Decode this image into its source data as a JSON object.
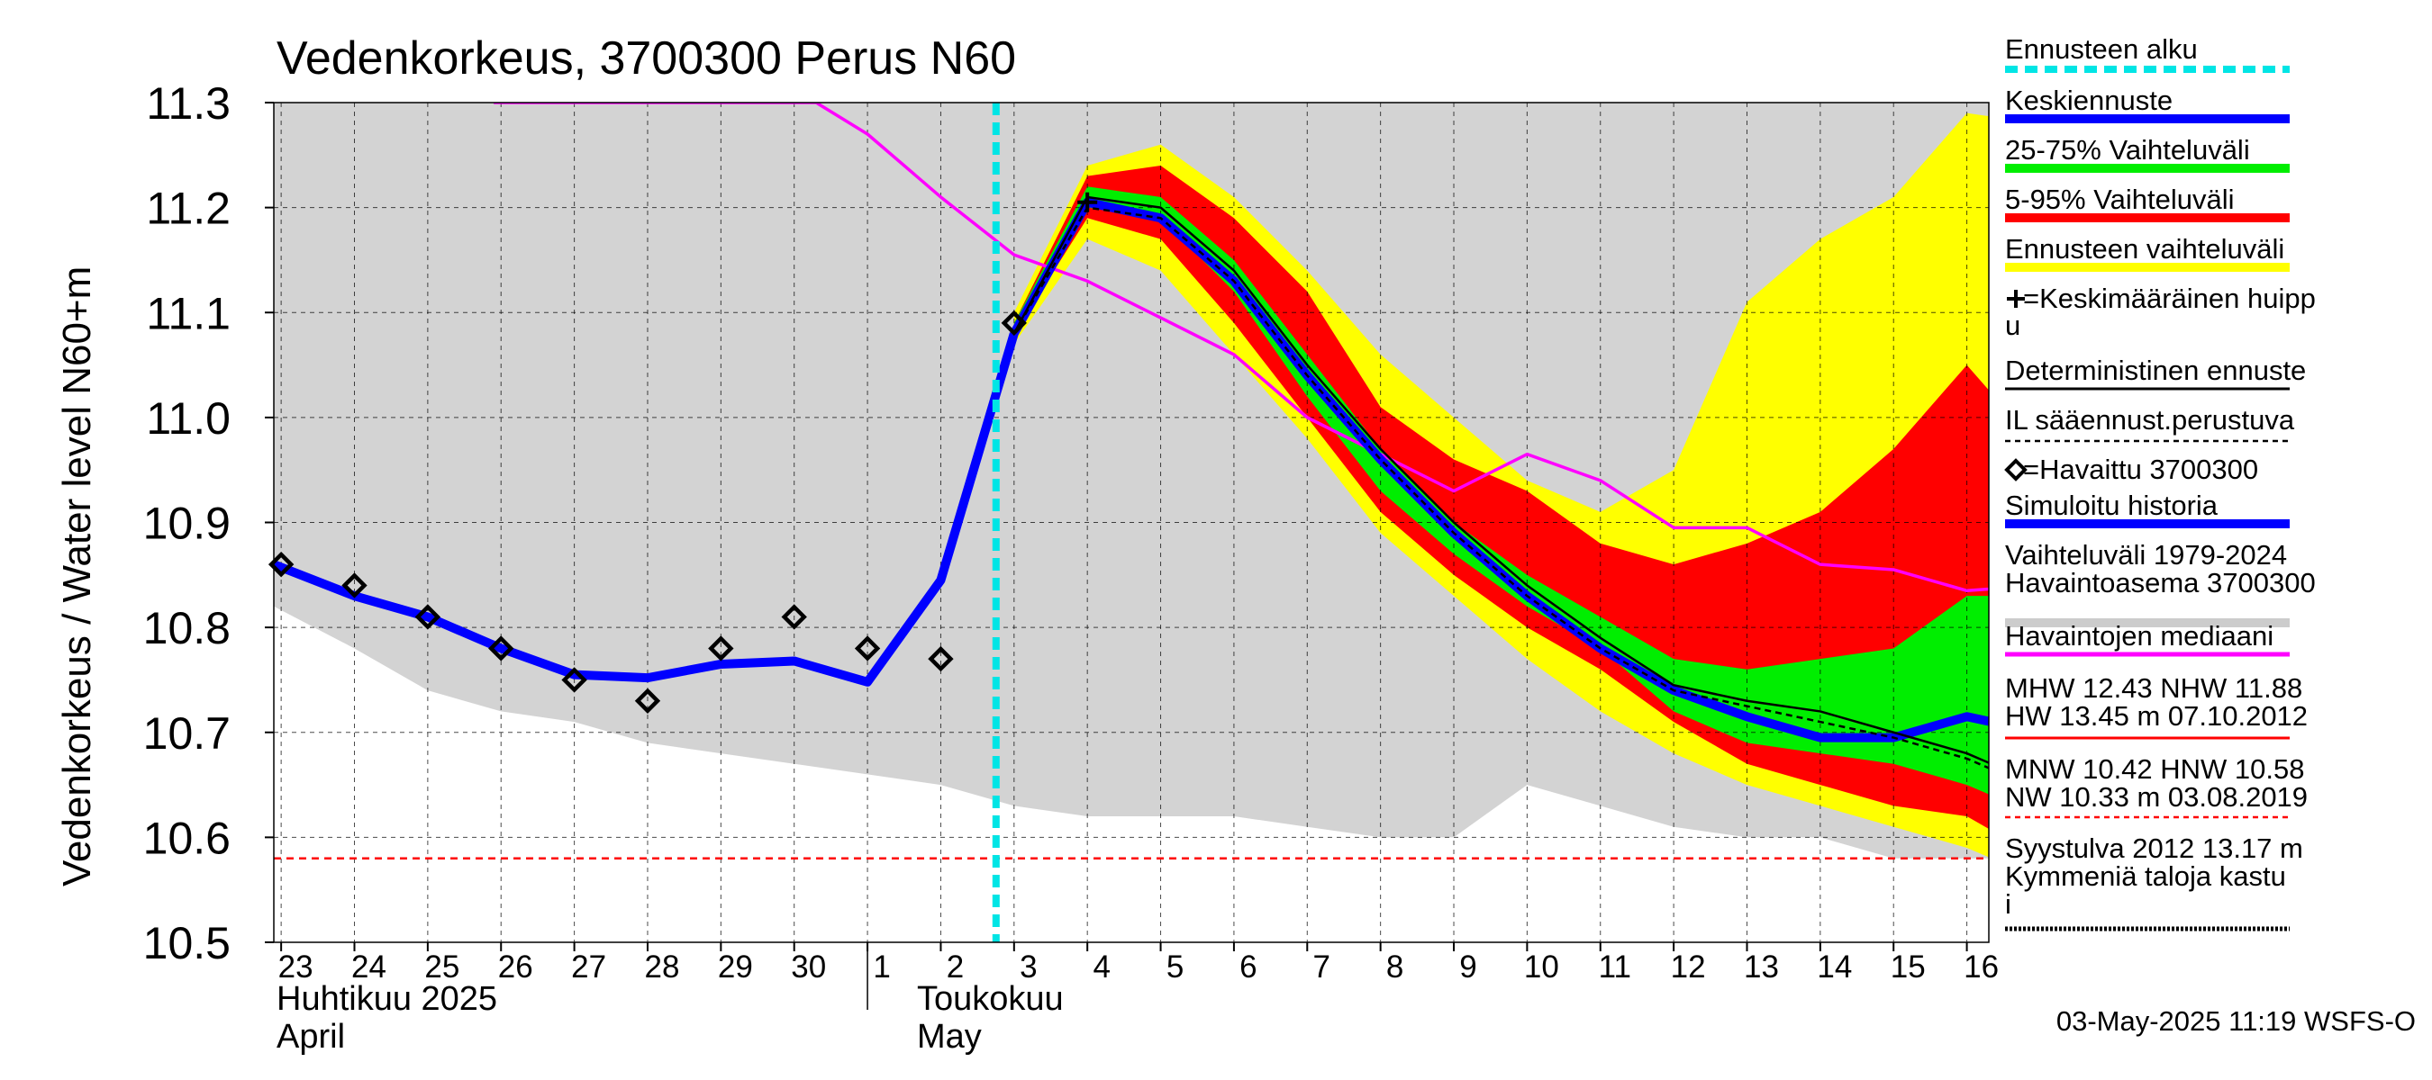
{
  "chart_data": {
    "type": "area",
    "title": "Vedenkorkeus, 3700300 Perus N60",
    "ylabel": "Vedenkorkeus / Water level   N60+m",
    "ylim": [
      10.5,
      11.3
    ],
    "yticks": [
      "10.5",
      "10.6",
      "10.7",
      "10.8",
      "10.9",
      "11.0",
      "11.1",
      "11.2",
      "11.3"
    ],
    "ytick_values": [
      10.5,
      10.6,
      10.7,
      10.8,
      10.9,
      11.0,
      11.1,
      11.2,
      11.3
    ],
    "xlim": [
      -0.1,
      23.3
    ],
    "xticks": [
      {
        "label": "23",
        "x": 0
      },
      {
        "label": "24",
        "x": 1
      },
      {
        "label": "25",
        "x": 2
      },
      {
        "label": "26",
        "x": 3
      },
      {
        "label": "27",
        "x": 4
      },
      {
        "label": "28",
        "x": 5
      },
      {
        "label": "29",
        "x": 6
      },
      {
        "label": "30",
        "x": 7
      },
      {
        "label": "1",
        "x": 8
      },
      {
        "label": "2",
        "x": 9
      },
      {
        "label": "3",
        "x": 10
      },
      {
        "label": "4",
        "x": 11
      },
      {
        "label": "5",
        "x": 12
      },
      {
        "label": "6",
        "x": 13
      },
      {
        "label": "7",
        "x": 14
      },
      {
        "label": "8",
        "x": 15
      },
      {
        "label": "9",
        "x": 16
      },
      {
        "label": "10",
        "x": 17
      },
      {
        "label": "11",
        "x": 18
      },
      {
        "label": "12",
        "x": 19
      },
      {
        "label": "13",
        "x": 20
      },
      {
        "label": "14",
        "x": 21
      },
      {
        "label": "15",
        "x": 22
      },
      {
        "label": "16",
        "x": 23
      }
    ],
    "month_labels": [
      {
        "fi": "Huhtikuu  2025",
        "en": "April",
        "x": 0
      },
      {
        "fi": "Toukokuu",
        "en": "May",
        "x": 9
      }
    ],
    "month_separator_x": 8,
    "forecast_start_x": 10,
    "grid": true,
    "timestamp": "03-May-2025 11:19 WSFS-O",
    "history_band": {
      "x": [
        -0.1,
        1,
        2,
        3,
        4,
        5,
        6,
        7,
        8,
        9,
        10,
        11,
        12,
        13,
        14,
        15,
        16,
        17,
        18,
        19,
        20,
        21,
        22,
        23,
        23.3
      ],
      "lower": [
        10.82,
        10.78,
        10.74,
        10.72,
        10.71,
        10.69,
        10.68,
        10.67,
        10.66,
        10.65,
        10.63,
        10.62,
        10.62,
        10.62,
        10.61,
        10.6,
        10.6,
        10.65,
        10.63,
        10.61,
        10.6,
        10.6,
        10.58,
        10.58,
        10.58
      ],
      "upper": 11.3
    },
    "forecast_bands": [
      {
        "name": "Ennusteen vaihteluväli",
        "color": "#ffff00",
        "x": [
          10,
          11,
          12,
          13,
          14,
          15,
          16,
          17,
          18,
          19,
          20,
          21,
          22,
          23,
          24
        ],
        "upper": [
          11.1,
          11.24,
          11.26,
          11.21,
          11.14,
          11.06,
          11.0,
          10.94,
          10.91,
          10.95,
          11.11,
          11.17,
          11.21,
          11.29,
          11.28
        ],
        "lower": [
          11.07,
          11.17,
          11.14,
          11.06,
          10.98,
          10.89,
          10.83,
          10.77,
          10.72,
          10.68,
          10.65,
          10.63,
          10.61,
          10.59,
          10.56
        ]
      },
      {
        "name": "5-95% Vaihteluväli",
        "color": "#ff0000",
        "x": [
          10,
          11,
          12,
          13,
          14,
          15,
          16,
          17,
          18,
          19,
          20,
          21,
          22,
          23,
          24
        ],
        "upper": [
          11.09,
          11.23,
          11.24,
          11.19,
          11.12,
          11.01,
          10.96,
          10.93,
          10.88,
          10.86,
          10.88,
          10.91,
          10.97,
          11.05,
          10.97
        ],
        "lower": [
          11.08,
          11.19,
          11.17,
          11.09,
          11.0,
          10.91,
          10.85,
          10.8,
          10.76,
          10.71,
          10.67,
          10.65,
          10.63,
          10.62,
          10.58
        ]
      },
      {
        "name": "25-75% Vaihteluväli",
        "color": "#00ee00",
        "x": [
          10,
          11,
          12,
          13,
          14,
          15,
          16,
          17,
          18,
          19,
          20,
          21,
          22,
          23,
          24
        ],
        "upper": [
          11.09,
          11.22,
          11.21,
          11.15,
          11.06,
          10.97,
          10.9,
          10.85,
          10.81,
          10.77,
          10.76,
          10.77,
          10.78,
          10.83,
          10.83
        ],
        "lower": [
          11.08,
          11.2,
          11.19,
          11.12,
          11.02,
          10.93,
          10.87,
          10.82,
          10.78,
          10.72,
          10.69,
          10.68,
          10.67,
          10.65,
          10.62
        ]
      }
    ],
    "series": [
      {
        "name": "Simuloitu historia",
        "color": "#0000ff",
        "x": [
          -0.1,
          1,
          2,
          3,
          4,
          5,
          6,
          7,
          8,
          9,
          10
        ],
        "values": [
          10.86,
          10.83,
          10.81,
          10.78,
          10.755,
          10.752,
          10.765,
          10.768,
          10.748,
          10.845,
          11.08
        ]
      },
      {
        "name": "Keskiennuste",
        "color": "#0000ff",
        "x": [
          10,
          11,
          12,
          13,
          14,
          15,
          16,
          17,
          18,
          19,
          20,
          21,
          22,
          23,
          24
        ],
        "values": [
          11.08,
          11.205,
          11.19,
          11.13,
          11.04,
          10.96,
          10.89,
          10.83,
          10.78,
          10.74,
          10.715,
          10.695,
          10.695,
          10.715,
          10.7
        ]
      },
      {
        "name": "Deterministinen ennuste",
        "color": "#000000",
        "x": [
          10,
          11,
          12,
          13,
          14,
          15,
          16,
          17,
          18,
          19,
          20,
          21,
          22,
          23,
          24
        ],
        "values": [
          11.08,
          11.21,
          11.2,
          11.14,
          11.05,
          10.97,
          10.9,
          10.84,
          10.79,
          10.745,
          10.73,
          10.72,
          10.7,
          10.68,
          10.65
        ]
      },
      {
        "name": "IL sääennust.perustuva",
        "color": "#000000",
        "x": [
          10,
          11,
          12,
          13,
          14,
          15,
          16,
          17,
          18,
          19,
          20,
          21,
          22,
          23,
          24
        ],
        "values": [
          11.08,
          11.2,
          11.19,
          11.13,
          11.04,
          10.96,
          10.89,
          10.83,
          10.78,
          10.74,
          10.725,
          10.71,
          10.695,
          10.675,
          10.645
        ]
      },
      {
        "name": "Havaintojen mediaani",
        "color": "#ff00ff",
        "x": [
          2.9,
          3.1,
          7.3,
          8,
          9,
          10,
          11,
          12,
          13,
          14,
          15,
          16,
          17,
          18,
          19,
          20,
          21,
          22,
          23,
          24
        ],
        "values": [
          11.3,
          11.3,
          11.3,
          11.27,
          11.21,
          11.155,
          11.13,
          11.095,
          11.06,
          11.0,
          10.965,
          10.93,
          10.965,
          10.94,
          10.895,
          10.895,
          10.86,
          10.855,
          10.835,
          10.84
        ]
      }
    ],
    "observed": {
      "name": "=Havaittu 3700300",
      "x": [
        0,
        1,
        2,
        3,
        4,
        5,
        6,
        7,
        8,
        9,
        10
      ],
      "values": [
        10.86,
        10.84,
        10.81,
        10.78,
        10.75,
        10.73,
        10.78,
        10.81,
        10.78,
        10.77,
        11.09
      ]
    },
    "mean_peak": {
      "name": "=Keskimääräinen huippu",
      "x": 11,
      "value": 11.205
    },
    "reference_lines": [
      {
        "name": "NW",
        "value": 10.58,
        "color": "#ff0000"
      }
    ],
    "legend_placement": "right",
    "legend": [
      {
        "label": "Ennusteen alku",
        "color": "#00e5e5",
        "style": "dashed-thick"
      },
      {
        "label": "Keskiennuste",
        "color": "#0000ff",
        "style": "thick"
      },
      {
        "label": "25-75% Vaihteluväli",
        "color": "#00ee00",
        "style": "thick"
      },
      {
        "label": "5-95% Vaihteluväli",
        "color": "#ff0000",
        "style": "thick"
      },
      {
        "label": "Ennusteen vaihteluväli",
        "color": "#ffff00",
        "style": "thick"
      },
      {
        "label": "=Keskimääräinen huipp",
        "label2": "u",
        "color": "#000000",
        "style": "none",
        "marker": "cross"
      },
      {
        "label": "Deterministinen ennuste",
        "color": "#000000",
        "style": "thin"
      },
      {
        "label": "IL sääennust.perustuva",
        "color": "#000000",
        "style": "dashed-thin"
      },
      {
        "label": "=Havaittu 3700300",
        "color": "#000000",
        "style": "none",
        "marker": "diamond"
      },
      {
        "label": "Simuloitu historia",
        "color": "#0000ff",
        "style": "thick"
      },
      {
        "label": "Vaihteluväli 1979-2024",
        "label2": " Havaintoasema 3700300",
        "color": "#cccccc",
        "style": "thick"
      },
      {
        "label": "Havaintojen mediaani",
        "color": "#ff00ff",
        "style": "medium"
      },
      {
        "label": "MHW  12.43 NHW  11.88",
        "label2": "HW  13.45 m 07.10.2012",
        "color": "#ff0000",
        "style": "thin"
      },
      {
        "label": "MNW  10.42 HNW  10.58",
        "label2": "NW  10.33 m 03.08.2019",
        "color": "#ff0000",
        "style": "dashed-thin"
      },
      {
        "label": "Syystulva 2012 13.17 m",
        "label2": "Kymmeniä taloja kastu",
        "label3": "i",
        "color": "#000000",
        "style": "dotted"
      }
    ]
  }
}
